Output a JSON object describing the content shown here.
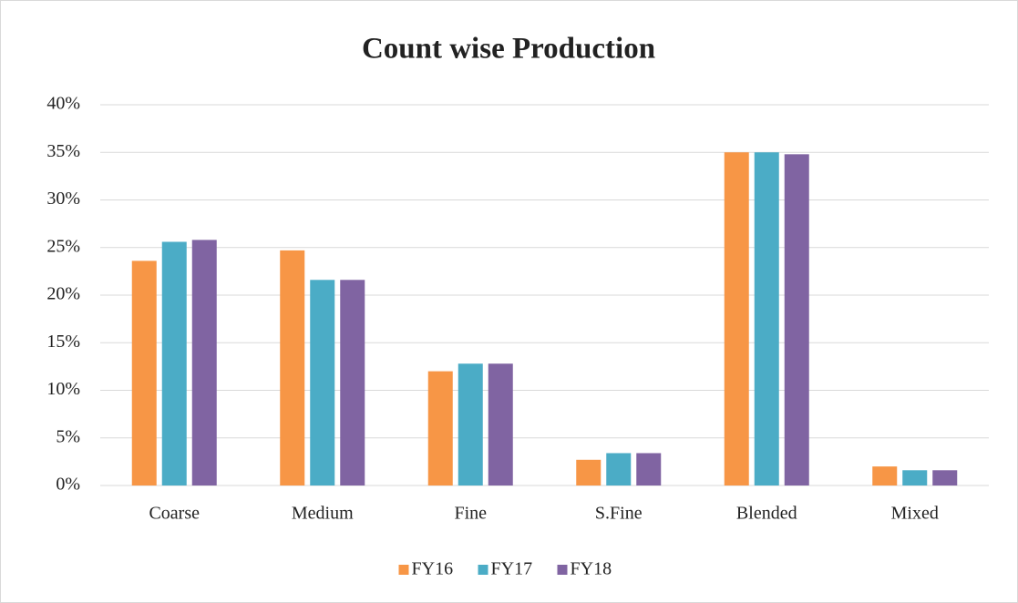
{
  "chart_data": {
    "type": "bar",
    "title": "Count wise Production",
    "categories": [
      "Coarse",
      "Medium",
      "Fine",
      "S.Fine",
      "Blended",
      "Mixed"
    ],
    "series": [
      {
        "name": "FY16",
        "color": "#f79646",
        "values": [
          23.6,
          24.7,
          12.0,
          2.7,
          35.0,
          2.0
        ]
      },
      {
        "name": "FY17",
        "color": "#4bacc6",
        "values": [
          25.6,
          21.6,
          12.8,
          3.4,
          35.0,
          1.6
        ]
      },
      {
        "name": "FY18",
        "color": "#8064a2",
        "values": [
          25.8,
          21.6,
          12.8,
          3.4,
          34.8,
          1.6
        ]
      }
    ],
    "ylim": [
      0,
      40
    ],
    "yticks": [
      {
        "value": 0,
        "label": "0%"
      },
      {
        "value": 5,
        "label": "5%"
      },
      {
        "value": 10,
        "label": "10%"
      },
      {
        "value": 15,
        "label": "15%"
      },
      {
        "value": 20,
        "label": "20%"
      },
      {
        "value": 25,
        "label": "25%"
      },
      {
        "value": 30,
        "label": "30%"
      },
      {
        "value": 35,
        "label": "35%"
      },
      {
        "value": 40,
        "label": "40%"
      }
    ],
    "grid": true,
    "legend": "bottom"
  }
}
